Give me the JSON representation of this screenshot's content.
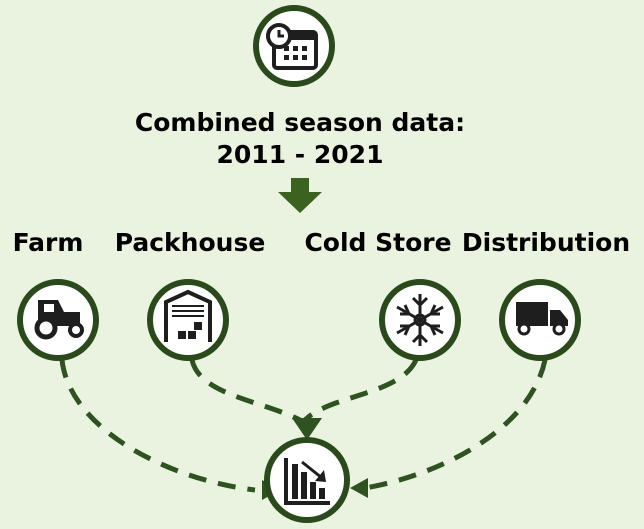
{
  "header": {
    "lines": [
      "Combined season data:",
      "2011 - 2021"
    ]
  },
  "nodes": [
    {
      "label": "Farm"
    },
    {
      "label": "Packhouse"
    },
    {
      "label": "Cold Store"
    },
    {
      "label": "Distribution"
    }
  ]
}
